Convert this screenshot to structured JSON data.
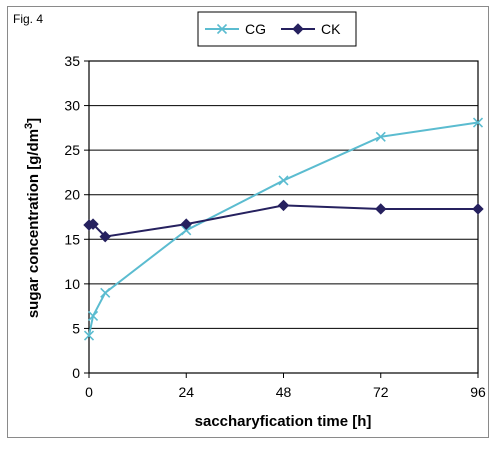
{
  "figure_label": "Fig. 4",
  "chart_data": {
    "type": "line",
    "x": [
      0,
      1,
      4,
      24,
      48,
      72,
      96
    ],
    "series": [
      {
        "name": "CG",
        "color": "#5bbcd0",
        "marker": "x",
        "values": [
          4.2,
          6.4,
          9.0,
          16.0,
          21.6,
          26.5,
          28.1
        ]
      },
      {
        "name": "CK",
        "color": "#26215f",
        "marker": "diamond",
        "values": [
          16.6,
          16.7,
          15.3,
          16.7,
          18.8,
          18.4,
          18.4
        ]
      }
    ],
    "xlabel": "saccharyfication time [h]",
    "ylabel_main": "sugar concentration [g/dm",
    "ylabel_sup": "3",
    "ylabel_end": "]",
    "xlim": [
      0,
      96
    ],
    "ylim": [
      0,
      35
    ],
    "x_ticks": [
      "0",
      "24",
      "48",
      "72",
      "96"
    ],
    "x_tick_values": [
      0,
      24,
      48,
      72,
      96
    ],
    "y_ticks": [
      "0",
      "5",
      "10",
      "15",
      "20",
      "25",
      "30",
      "35"
    ],
    "y_tick_values": [
      0,
      5,
      10,
      15,
      20,
      25,
      30,
      35
    ],
    "grid": "horizontal",
    "legend_position": "top"
  }
}
